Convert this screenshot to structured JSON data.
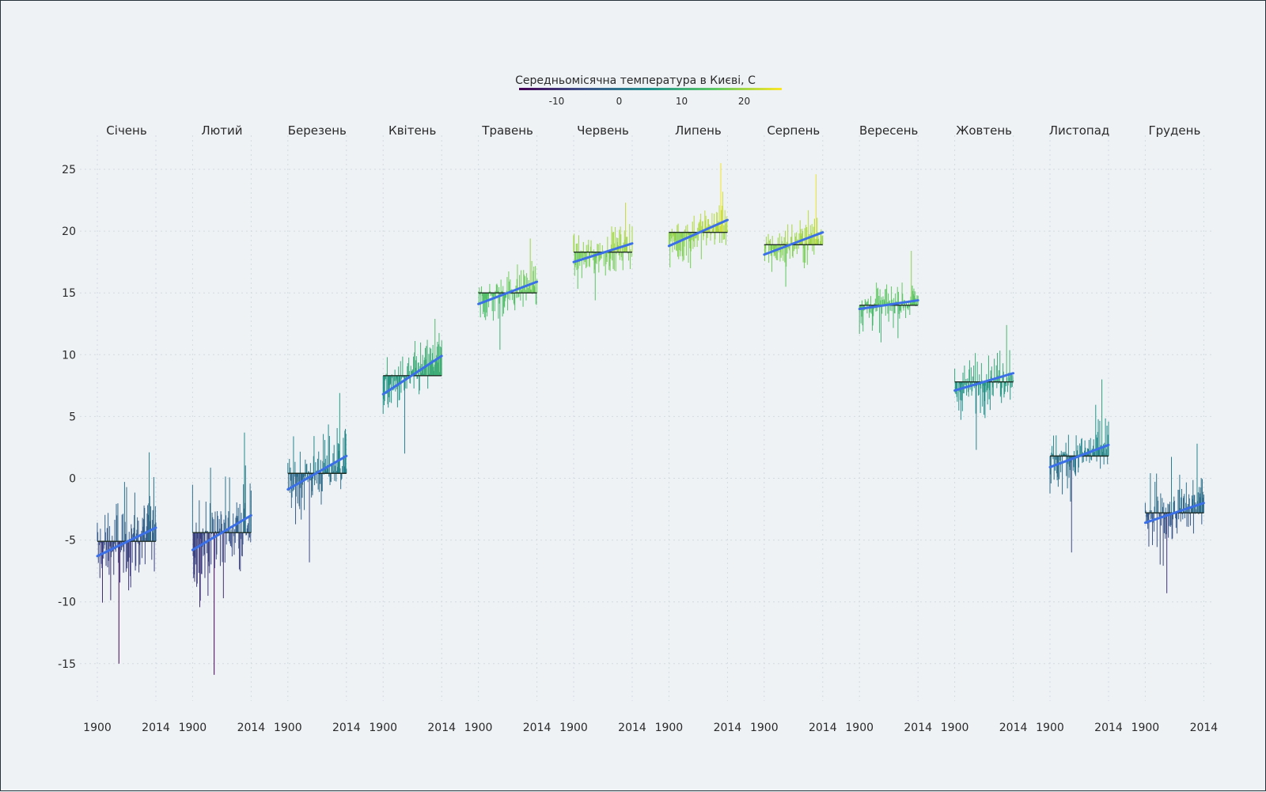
{
  "chart_data": {
    "type": "bar",
    "title": "Середньомісячна температура в Києві, С",
    "colorbar": {
      "ticks": [
        -10,
        0,
        10,
        20
      ],
      "range": [
        -16,
        26
      ],
      "colors": [
        "#440154",
        "#3b528b",
        "#21918c",
        "#5ec962",
        "#fde725"
      ]
    },
    "ylim": [
      -17.5,
      27
    ],
    "yticks": [
      -15,
      -10,
      -5,
      0,
      5,
      10,
      15,
      20,
      25
    ],
    "x_first_label": "1900",
    "x_last_label": "2014",
    "year_range": [
      1900,
      2014
    ],
    "grid": true,
    "trend_color": "#3a6fe8",
    "months": [
      {
        "name": "Січень",
        "mean": -5.1,
        "trend_start": -6.3,
        "trend_end": -4.0,
        "min": -15.0,
        "max": 2.1,
        "sd": 3.2
      },
      {
        "name": "Лютий",
        "mean": -4.4,
        "trend_start": -5.8,
        "trend_end": -3.0,
        "min": -15.9,
        "max": 3.7,
        "sd": 3.3
      },
      {
        "name": "Березень",
        "mean": 0.4,
        "trend_start": -0.9,
        "trend_end": 1.8,
        "min": -6.8,
        "max": 6.9,
        "sd": 2.3
      },
      {
        "name": "Квітень",
        "mean": 8.3,
        "trend_start": 6.8,
        "trend_end": 9.9,
        "min": 2.0,
        "max": 12.9,
        "sd": 1.7
      },
      {
        "name": "Травень",
        "mean": 15.0,
        "trend_start": 14.1,
        "trend_end": 15.9,
        "min": 10.4,
        "max": 19.4,
        "sd": 1.5
      },
      {
        "name": "Червень",
        "mean": 18.3,
        "trend_start": 17.5,
        "trend_end": 19.0,
        "min": 14.4,
        "max": 22.3,
        "sd": 1.4
      },
      {
        "name": "Липень",
        "mean": 19.9,
        "trend_start": 18.8,
        "trend_end": 20.9,
        "min": 17.0,
        "max": 25.5,
        "sd": 1.5
      },
      {
        "name": "Серпень",
        "mean": 18.9,
        "trend_start": 18.1,
        "trend_end": 19.9,
        "min": 15.5,
        "max": 24.6,
        "sd": 1.5
      },
      {
        "name": "Вересень",
        "mean": 14.0,
        "trend_start": 13.7,
        "trend_end": 14.4,
        "min": 11.0,
        "max": 18.4,
        "sd": 1.4
      },
      {
        "name": "Жовтень",
        "mean": 7.8,
        "trend_start": 7.1,
        "trend_end": 8.5,
        "min": 2.3,
        "max": 12.4,
        "sd": 1.7
      },
      {
        "name": "Листопад",
        "mean": 1.8,
        "trend_start": 0.9,
        "trend_end": 2.7,
        "min": -6.0,
        "max": 8.0,
        "sd": 2.0
      },
      {
        "name": "Грудень",
        "mean": -2.8,
        "trend_start": -3.6,
        "trend_end": -2.0,
        "min": -9.3,
        "max": 2.8,
        "sd": 2.3
      }
    ]
  }
}
